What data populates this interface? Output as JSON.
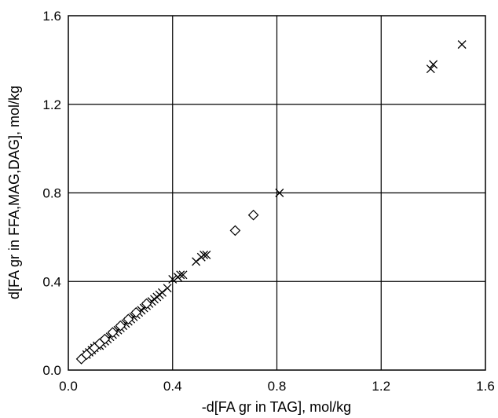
{
  "chart_data": {
    "type": "scatter",
    "xlabel": "-d[FA gr in TAG], mol/kg",
    "ylabel": "d[FA gr in FFA,MAG,DAG], mol/kg",
    "xlim": [
      0.0,
      1.6
    ],
    "ylim": [
      0.0,
      1.6
    ],
    "x_ticks": [
      0.0,
      0.4,
      0.8,
      1.2,
      1.6
    ],
    "y_ticks": [
      0.0,
      0.4,
      0.8,
      1.2,
      1.6
    ],
    "x_tick_labels": [
      "0.0",
      "0.4",
      "0.8",
      "1.2",
      "1.6"
    ],
    "y_tick_labels": [
      "0.0",
      "0.4",
      "0.8",
      "1.2",
      "1.6"
    ],
    "grid": true,
    "series": [
      {
        "marker": "x",
        "color": "#000000",
        "points": [
          [
            0.07,
            0.07
          ],
          [
            0.08,
            0.08
          ],
          [
            0.09,
            0.09
          ],
          [
            0.1,
            0.1
          ],
          [
            0.11,
            0.11
          ],
          [
            0.12,
            0.11
          ],
          [
            0.13,
            0.12
          ],
          [
            0.14,
            0.13
          ],
          [
            0.15,
            0.14
          ],
          [
            0.16,
            0.15
          ],
          [
            0.17,
            0.16
          ],
          [
            0.18,
            0.17
          ],
          [
            0.19,
            0.18
          ],
          [
            0.2,
            0.19
          ],
          [
            0.21,
            0.2
          ],
          [
            0.22,
            0.21
          ],
          [
            0.23,
            0.22
          ],
          [
            0.24,
            0.23
          ],
          [
            0.25,
            0.24
          ],
          [
            0.26,
            0.25
          ],
          [
            0.27,
            0.26
          ],
          [
            0.28,
            0.27
          ],
          [
            0.29,
            0.28
          ],
          [
            0.3,
            0.29
          ],
          [
            0.31,
            0.3
          ],
          [
            0.32,
            0.31
          ],
          [
            0.33,
            0.32
          ],
          [
            0.34,
            0.33
          ],
          [
            0.35,
            0.34
          ],
          [
            0.36,
            0.35
          ],
          [
            0.38,
            0.37
          ],
          [
            0.4,
            0.41
          ],
          [
            0.42,
            0.42
          ],
          [
            0.43,
            0.43
          ],
          [
            0.44,
            0.43
          ],
          [
            0.49,
            0.49
          ],
          [
            0.51,
            0.51
          ],
          [
            0.52,
            0.52
          ],
          [
            0.53,
            0.52
          ],
          [
            0.81,
            0.8
          ],
          [
            1.39,
            1.36
          ],
          [
            1.4,
            1.38
          ],
          [
            1.51,
            1.47
          ]
        ]
      },
      {
        "marker": "diamond",
        "color": "#000000",
        "points": [
          [
            0.05,
            0.05
          ],
          [
            0.07,
            0.07
          ],
          [
            0.09,
            0.09
          ],
          [
            0.1,
            0.1
          ],
          [
            0.12,
            0.12
          ],
          [
            0.14,
            0.14
          ],
          [
            0.17,
            0.17
          ],
          [
            0.2,
            0.2
          ],
          [
            0.23,
            0.23
          ],
          [
            0.26,
            0.26
          ],
          [
            0.3,
            0.3
          ],
          [
            0.64,
            0.63
          ],
          [
            0.71,
            0.7
          ]
        ]
      }
    ]
  }
}
